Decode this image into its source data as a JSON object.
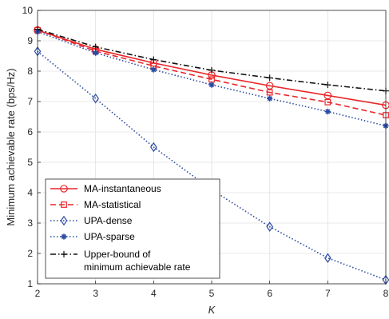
{
  "chart_data": {
    "type": "line",
    "xlabel": "K",
    "ylabel": "Minimum achievable rate (bps/Hz)",
    "x": [
      2,
      3,
      4,
      5,
      6,
      7,
      8
    ],
    "xlim": [
      2,
      8
    ],
    "ylim": [
      1,
      10
    ],
    "xticks": [
      2,
      3,
      4,
      5,
      6,
      7,
      8
    ],
    "yticks": [
      1,
      2,
      3,
      4,
      5,
      6,
      7,
      8,
      9,
      10
    ],
    "grid": true,
    "legend_position": "bottom-left",
    "series": [
      {
        "name": "MA-instantaneous",
        "color": "#e8262a",
        "dash": "solid",
        "marker": "circle",
        "values": [
          9.35,
          8.72,
          8.27,
          7.87,
          7.52,
          7.2,
          6.88
        ]
      },
      {
        "name": "MA-statistical",
        "color": "#e8262a",
        "dash": "dashed",
        "marker": "square",
        "values": [
          9.35,
          8.66,
          8.17,
          7.73,
          7.3,
          6.98,
          6.55
        ]
      },
      {
        "name": "UPA-dense",
        "color": "#2b4ba3",
        "dash": "dotted",
        "marker": "diamond",
        "values": [
          8.65,
          7.1,
          5.5,
          4.1,
          2.88,
          1.85,
          1.13
        ]
      },
      {
        "name": "UPA-sparse",
        "color": "#2b4ba3",
        "dash": "dotted",
        "marker": "asterisk",
        "values": [
          9.3,
          8.6,
          8.05,
          7.55,
          7.1,
          6.67,
          6.2
        ]
      },
      {
        "name": "Upper-bound of\nminimum achievable rate",
        "color": "#111111",
        "dash": "dashdot",
        "marker": "plus",
        "values": [
          9.38,
          8.8,
          8.38,
          8.03,
          7.78,
          7.55,
          7.35
        ]
      }
    ]
  }
}
